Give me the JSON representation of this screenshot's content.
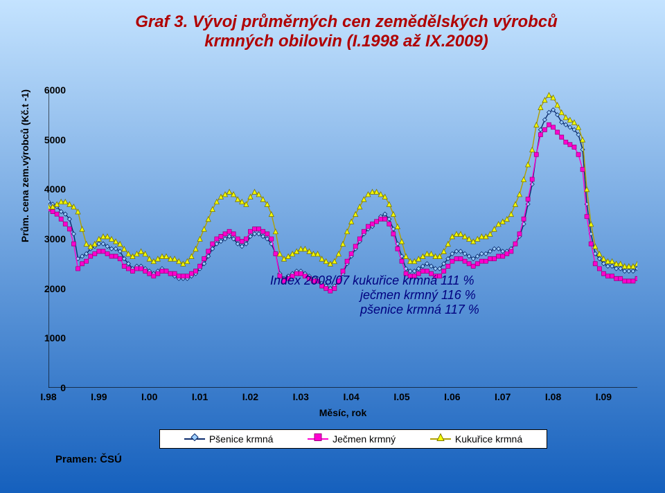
{
  "background_gradient": {
    "top": "#c4e3ff",
    "bottom": "#1560bd"
  },
  "title": {
    "line1": "Graf 3. Vývoj průměrných cen zemědělských výrobců",
    "line2": "krmných obilovin (I.1998 až IX.2009)",
    "color": "#b00000",
    "fontsize": 24
  },
  "chart": {
    "type": "line",
    "plot_bg": "transparent",
    "axis_color": "#000000",
    "tick_color": "#000000",
    "tick_fontsize": 14,
    "label_fontsize": 14,
    "y": {
      "label": "Prům. cena zem.výrobců (Kč.t -1)",
      "min": 0,
      "max": 6000,
      "step": 1000,
      "ticks": [
        "0",
        "1000",
        "2000",
        "3000",
        "4000",
        "5000",
        "6000"
      ]
    },
    "x": {
      "label": "Měsíc, rok",
      "ticks": [
        "I.98",
        "I.99",
        "I.00",
        "I.01",
        "I.02",
        "I.03",
        "I.04",
        "I.05",
        "I.06",
        "I.07",
        "I.08",
        "I.09"
      ],
      "min_index": 0,
      "max_index": 140
    },
    "series": [
      {
        "name": "Pšenice krmná",
        "color": "#0a2a6b",
        "marker_fill": "#9ecfff",
        "marker_stroke": "#0a2a6b",
        "marker": "diamond",
        "marker_size": 6,
        "line_width": 1.4,
        "values": [
          3750,
          3700,
          3650,
          3550,
          3500,
          3400,
          3100,
          2600,
          2650,
          2700,
          2800,
          2850,
          2900,
          2900,
          2850,
          2800,
          2800,
          2750,
          2600,
          2500,
          2400,
          2450,
          2450,
          2400,
          2350,
          2300,
          2350,
          2400,
          2350,
          2300,
          2250,
          2200,
          2200,
          2200,
          2250,
          2300,
          2400,
          2500,
          2650,
          2800,
          2900,
          2950,
          3000,
          3050,
          3000,
          2900,
          2850,
          2900,
          3050,
          3100,
          3100,
          3050,
          3000,
          2900,
          2700,
          2300,
          2200,
          2250,
          2300,
          2350,
          2350,
          2300,
          2250,
          2200,
          2200,
          2100,
          2050,
          2000,
          2050,
          2150,
          2300,
          2500,
          2650,
          2800,
          2950,
          3100,
          3200,
          3250,
          3350,
          3450,
          3500,
          3400,
          3200,
          2900,
          2650,
          2400,
          2350,
          2350,
          2400,
          2450,
          2500,
          2450,
          2400,
          2400,
          2500,
          2600,
          2700,
          2750,
          2750,
          2700,
          2650,
          2600,
          2650,
          2700,
          2700,
          2750,
          2800,
          2800,
          2750,
          2750,
          2800,
          2900,
          3050,
          3300,
          3700,
          4100,
          4700,
          5200,
          5400,
          5550,
          5600,
          5500,
          5350,
          5300,
          5250,
          5200,
          5100,
          4800,
          3700,
          3100,
          2700,
          2600,
          2500,
          2450,
          2450,
          2400,
          2400,
          2350,
          2350,
          2350,
          2400
        ]
      },
      {
        "name": "Ječmen krmný",
        "color": "#ff00d0",
        "marker_fill": "#ff00d0",
        "marker_stroke": "#9c007f",
        "marker": "square",
        "marker_size": 6,
        "line_width": 1.4,
        "values": [
          3600,
          3550,
          3500,
          3400,
          3300,
          3200,
          2900,
          2400,
          2500,
          2550,
          2650,
          2700,
          2750,
          2750,
          2700,
          2650,
          2650,
          2600,
          2450,
          2400,
          2350,
          2400,
          2400,
          2350,
          2300,
          2250,
          2300,
          2350,
          2350,
          2300,
          2300,
          2250,
          2250,
          2250,
          2300,
          2350,
          2450,
          2600,
          2750,
          2900,
          3000,
          3050,
          3100,
          3150,
          3100,
          3000,
          2950,
          3000,
          3150,
          3200,
          3200,
          3150,
          3100,
          3000,
          2700,
          2250,
          2150,
          2200,
          2250,
          2300,
          2300,
          2250,
          2200,
          2150,
          2150,
          2050,
          2000,
          1950,
          2000,
          2150,
          2350,
          2550,
          2700,
          2850,
          3000,
          3150,
          3250,
          3300,
          3350,
          3400,
          3400,
          3300,
          3100,
          2800,
          2550,
          2300,
          2250,
          2250,
          2300,
          2350,
          2350,
          2300,
          2250,
          2250,
          2350,
          2450,
          2550,
          2600,
          2600,
          2550,
          2500,
          2450,
          2500,
          2550,
          2550,
          2600,
          2600,
          2650,
          2650,
          2700,
          2750,
          2900,
          3100,
          3400,
          3800,
          4200,
          4700,
          5100,
          5200,
          5300,
          5250,
          5150,
          5050,
          4950,
          4900,
          4850,
          4700,
          4400,
          3450,
          2900,
          2500,
          2400,
          2300,
          2250,
          2250,
          2200,
          2200,
          2150,
          2150,
          2150,
          2200
        ]
      },
      {
        "name": "Kukuřice krmná",
        "color": "#b0a000",
        "marker_fill": "#f6ff00",
        "marker_stroke": "#7a7500",
        "marker": "triangle",
        "marker_size": 7,
        "line_width": 1.4,
        "values": [
          3650,
          3650,
          3700,
          3750,
          3750,
          3700,
          3650,
          3550,
          3200,
          2900,
          2850,
          2900,
          3000,
          3050,
          3050,
          3000,
          2950,
          2900,
          2800,
          2700,
          2650,
          2700,
          2750,
          2700,
          2600,
          2550,
          2600,
          2650,
          2650,
          2600,
          2600,
          2550,
          2500,
          2550,
          2650,
          2800,
          3000,
          3200,
          3400,
          3600,
          3750,
          3850,
          3900,
          3950,
          3900,
          3800,
          3750,
          3700,
          3850,
          3950,
          3900,
          3800,
          3700,
          3500,
          3150,
          2700,
          2600,
          2650,
          2700,
          2750,
          2800,
          2800,
          2750,
          2700,
          2700,
          2600,
          2550,
          2500,
          2550,
          2700,
          2900,
          3150,
          3350,
          3500,
          3650,
          3800,
          3900,
          3950,
          3950,
          3900,
          3850,
          3700,
          3500,
          3250,
          2950,
          2650,
          2550,
          2550,
          2600,
          2650,
          2700,
          2700,
          2650,
          2650,
          2750,
          2900,
          3050,
          3100,
          3100,
          3050,
          3000,
          2950,
          3000,
          3050,
          3050,
          3100,
          3200,
          3300,
          3350,
          3400,
          3500,
          3700,
          3900,
          4200,
          4500,
          4800,
          5300,
          5650,
          5800,
          5900,
          5850,
          5700,
          5550,
          5450,
          5400,
          5350,
          5250,
          5000,
          4000,
          3300,
          2850,
          2700,
          2600,
          2550,
          2550,
          2500,
          2500,
          2450,
          2450,
          2450,
          2500
        ]
      }
    ]
  },
  "annotation": {
    "lines": [
      "Index 2008/07  kukuřice krmná  111 %",
      "ječmen krmný    116 %",
      "pšenice krmná   117 %"
    ],
    "color": "#000080",
    "fontsize": 18
  },
  "source_label": "Pramen: ČSÚ",
  "legend": {
    "border_color": "#000",
    "bg": "#fff"
  }
}
